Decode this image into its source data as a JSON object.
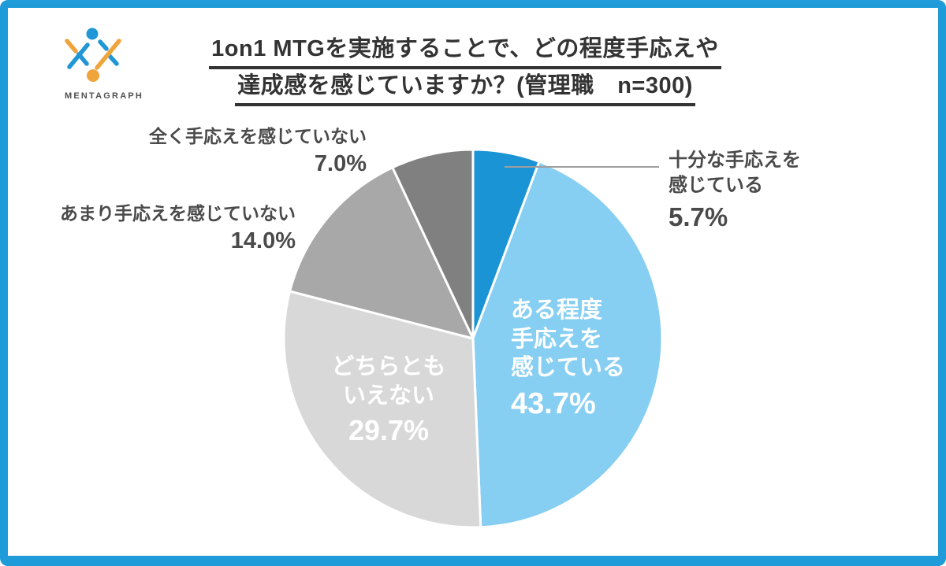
{
  "frame": {
    "border_color": "#1E9BD8"
  },
  "logo": {
    "text": "MENTAGRAPH",
    "blue": "#2196D6",
    "orange": "#F0A43C"
  },
  "title": {
    "line1": "1on1 MTGを実施することで、どの程度手応えや",
    "line2": "達成感を感じていますか？(管理職　n=300)"
  },
  "chart_data": {
    "type": "pie",
    "title": "1on1 MTGを実施することで、どの程度手応えや達成感を感じていますか？",
    "population": "管理職",
    "n": 300,
    "unit": "%",
    "direction": "clockwise",
    "start_angle_deg": 0,
    "leader_line_color": "#9E9E9E",
    "segments": [
      {
        "label": "十分な手応えを感じている",
        "value": 5.7,
        "color": "#1B94D6",
        "label_placement": "outside-right",
        "display": {
          "lines": [
            "十分な手応えを",
            "感じている"
          ],
          "pct": "5.7%"
        }
      },
      {
        "label": "ある程度手応えを感じている",
        "value": 43.7,
        "color": "#86CEF2",
        "label_placement": "inside",
        "display": {
          "lines": [
            "ある程度",
            "手応えを",
            "感じている"
          ],
          "pct": "43.7%"
        }
      },
      {
        "label": "どちらともいえない",
        "value": 29.7,
        "color": "#D8D8D8",
        "label_placement": "inside",
        "display": {
          "lines": [
            "どちらとも",
            "いえない"
          ],
          "pct": "29.7%"
        }
      },
      {
        "label": "あまり手応えを感じていない",
        "value": 14.0,
        "color": "#A8A8A8",
        "label_placement": "outside-left",
        "display": {
          "lines": [
            "あまり手応えを感じていない"
          ],
          "pct": "14.0%"
        }
      },
      {
        "label": "全く手応えを感じていない",
        "value": 7.0,
        "color": "#808080",
        "label_placement": "outside-left",
        "display": {
          "lines": [
            "全く手応えを感じていない"
          ],
          "pct": "7.0%"
        }
      }
    ]
  }
}
